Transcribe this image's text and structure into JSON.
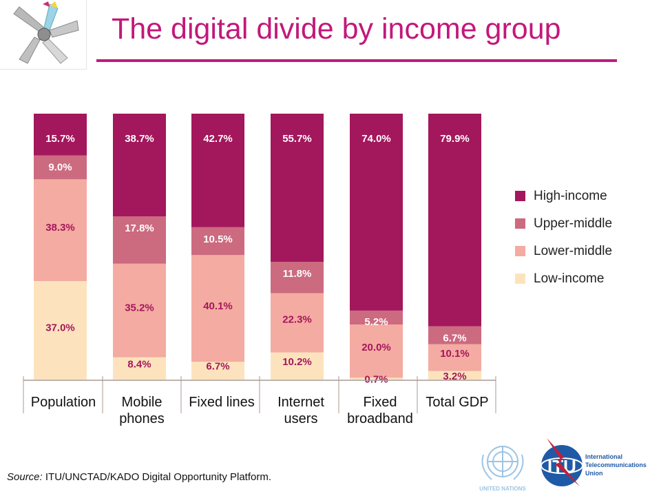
{
  "slide": {
    "title": "The digital divide by income group",
    "source_prefix": "Source:",
    "source_text": " ITU/UNCTAD/KADO Digital Opportunity Platform."
  },
  "logos": {
    "un_text": "UNITED NATIONS",
    "itu_text": "ITU",
    "itu_name_lines": [
      "International",
      "Telecommunications",
      "Union"
    ]
  },
  "colors": {
    "high": "#a3175c",
    "upper": "#cc6a80",
    "lower": "#f4aba1",
    "low": "#fde3bd",
    "accent": "#c2187a",
    "label_dark_bg": "#ffffff",
    "label_light_bg": "#a3175c"
  },
  "chart_data": {
    "type": "bar",
    "stacked": true,
    "normalized_percent": true,
    "categories": [
      [
        "Population"
      ],
      [
        "Mobile",
        "phones"
      ],
      [
        "Fixed lines"
      ],
      [
        "Internet",
        "users"
      ],
      [
        "Fixed",
        "broadband"
      ],
      [
        "Total GDP"
      ]
    ],
    "series": [
      {
        "name": "Low-income",
        "values": [
          37.0,
          8.4,
          6.7,
          10.2,
          0.7,
          3.2
        ],
        "labels": [
          "37.0%",
          "8.4%",
          "6.7%",
          "10.2%",
          "0.7%",
          "3.2%"
        ]
      },
      {
        "name": "Lower-middle",
        "values": [
          38.3,
          35.2,
          40.1,
          22.3,
          20.0,
          10.1
        ],
        "labels": [
          "38.3%",
          "35.2%",
          "40.1%",
          "22.3%",
          "20.0%",
          "10.1%"
        ]
      },
      {
        "name": "Upper-middle",
        "values": [
          9.0,
          17.8,
          10.5,
          11.8,
          5.2,
          6.7
        ],
        "labels": [
          "9.0%",
          "17.8%",
          "10.5%",
          "11.8%",
          "5.2%",
          "6.7%"
        ]
      },
      {
        "name": "High-income",
        "values": [
          15.7,
          38.7,
          42.7,
          55.7,
          74.0,
          79.9
        ],
        "labels": [
          "15.7%",
          "38.7%",
          "42.7%",
          "55.7%",
          "74.0%",
          "79.9%"
        ]
      }
    ],
    "legend": {
      "position": "right",
      "order": [
        "High-income",
        "Upper-middle",
        "Lower-middle",
        "Low-income"
      ]
    },
    "ylim": [
      0,
      100
    ],
    "grid": false
  }
}
